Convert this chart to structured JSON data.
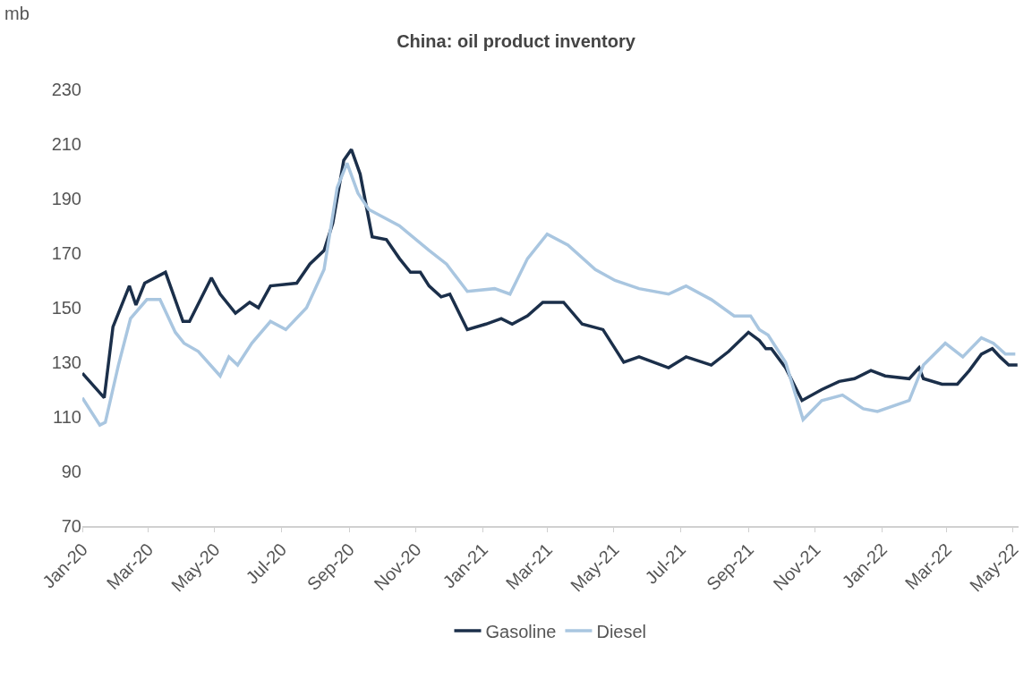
{
  "chart_data": {
    "type": "line",
    "title": "China: oil product inventory",
    "ylabel": "mb",
    "xlim": [
      "2020-01-01",
      "2022-05-06"
    ],
    "xticks": [
      {
        "value": "2020-01-01",
        "label": "Jan-20"
      },
      {
        "value": "2020-03-01",
        "label": "Mar-20"
      },
      {
        "value": "2020-05-01",
        "label": "May-20"
      },
      {
        "value": "2020-07-01",
        "label": "Jul-20"
      },
      {
        "value": "2020-09-01",
        "label": "Sep-20"
      },
      {
        "value": "2020-11-01",
        "label": "Nov-20"
      },
      {
        "value": "2021-01-01",
        "label": "Jan-21"
      },
      {
        "value": "2021-03-01",
        "label": "Mar-21"
      },
      {
        "value": "2021-05-01",
        "label": "May-21"
      },
      {
        "value": "2021-07-01",
        "label": "Jul-21"
      },
      {
        "value": "2021-09-01",
        "label": "Sep-21"
      },
      {
        "value": "2021-11-01",
        "label": "Nov-21"
      },
      {
        "value": "2022-01-01",
        "label": "Jan-22"
      },
      {
        "value": "2022-03-01",
        "label": "Mar-22"
      },
      {
        "value": "2022-05-01",
        "label": "May-22"
      }
    ],
    "ylim": [
      70,
      230
    ],
    "yticks": [
      70,
      90,
      110,
      130,
      150,
      170,
      190,
      210,
      230
    ],
    "grid": false,
    "legend": "bottom",
    "marker": "none",
    "line_style": "solid",
    "series": [
      {
        "name": "Gasoline",
        "color": "#1b2f4a",
        "x": [
          "2020-01-01",
          "2020-01-21",
          "2020-01-29",
          "2020-02-13",
          "2020-02-19",
          "2020-02-27",
          "2020-03-17",
          "2020-04-02",
          "2020-04-08",
          "2020-04-28",
          "2020-05-06",
          "2020-05-20",
          "2020-06-02",
          "2020-06-10",
          "2020-06-21",
          "2020-07-15",
          "2020-07-27",
          "2020-08-09",
          "2020-08-17",
          "2020-08-27",
          "2020-09-03",
          "2020-09-11",
          "2020-09-22",
          "2020-10-05",
          "2020-10-17",
          "2020-10-27",
          "2020-11-05",
          "2020-11-13",
          "2020-11-24",
          "2020-12-02",
          "2020-12-18",
          "2021-01-04",
          "2021-01-18",
          "2021-01-28",
          "2021-02-11",
          "2021-02-25",
          "2021-03-16",
          "2021-04-02",
          "2021-04-21",
          "2021-05-10",
          "2021-05-24",
          "2021-06-20",
          "2021-07-06",
          "2021-07-29",
          "2021-08-14",
          "2021-09-01",
          "2021-09-11",
          "2021-09-17",
          "2021-09-22",
          "2021-10-05",
          "2021-10-20",
          "2021-11-07",
          "2021-11-23",
          "2021-12-07",
          "2021-12-22",
          "2022-01-04",
          "2022-01-26",
          "2022-02-04",
          "2022-02-08",
          "2022-02-25",
          "2022-03-11",
          "2022-03-22",
          "2022-04-02",
          "2022-04-12",
          "2022-04-19",
          "2022-04-27",
          "2022-05-05"
        ],
        "values": [
          126,
          117,
          143,
          158,
          151,
          159,
          163,
          145,
          145,
          161,
          155,
          148,
          152,
          150,
          158,
          159,
          166,
          171,
          181,
          204,
          208,
          199,
          176,
          175,
          168,
          163,
          163,
          158,
          154,
          155,
          142,
          144,
          146,
          144,
          147,
          152,
          152,
          144,
          142,
          130,
          132,
          128,
          132,
          129,
          134,
          141,
          138,
          135,
          135,
          128,
          116,
          120,
          123,
          124,
          127,
          125,
          124,
          128,
          124,
          122,
          122,
          127,
          133,
          135,
          132,
          129,
          129
        ]
      },
      {
        "name": "Diesel",
        "color": "#a9c6e0",
        "x": [
          "2020-01-01",
          "2020-01-17",
          "2020-01-22",
          "2020-02-03",
          "2020-02-14",
          "2020-02-29",
          "2020-03-12",
          "2020-03-26",
          "2020-04-03",
          "2020-04-16",
          "2020-05-06",
          "2020-05-14",
          "2020-05-22",
          "2020-06-04",
          "2020-06-21",
          "2020-07-05",
          "2020-07-24",
          "2020-08-09",
          "2020-08-21",
          "2020-08-30",
          "2020-09-09",
          "2020-09-19",
          "2020-10-17",
          "2020-11-13",
          "2020-11-29",
          "2020-12-18",
          "2021-01-12",
          "2021-01-26",
          "2021-02-11",
          "2021-03-01",
          "2021-03-20",
          "2021-04-14",
          "2021-05-02",
          "2021-05-24",
          "2021-06-20",
          "2021-07-06",
          "2021-07-29",
          "2021-08-19",
          "2021-09-03",
          "2021-09-11",
          "2021-09-19",
          "2021-10-05",
          "2021-10-21",
          "2021-11-07",
          "2021-11-26",
          "2021-12-15",
          "2021-12-28",
          "2022-01-26",
          "2022-01-31",
          "2022-02-08",
          "2022-02-28",
          "2022-03-16",
          "2022-04-02",
          "2022-04-13",
          "2022-04-24",
          "2022-05-03"
        ],
        "values": [
          117,
          107,
          108,
          129,
          146,
          153,
          153,
          141,
          137,
          134,
          125,
          132,
          129,
          137,
          145,
          142,
          150,
          164,
          194,
          203,
          192,
          186,
          180,
          171,
          166,
          156,
          157,
          155,
          168,
          177,
          173,
          164,
          160,
          157,
          155,
          158,
          153,
          147,
          147,
          142,
          140,
          130,
          109,
          116,
          118,
          113,
          112,
          116,
          121,
          129,
          137,
          132,
          139,
          137,
          133,
          133
        ]
      }
    ]
  }
}
